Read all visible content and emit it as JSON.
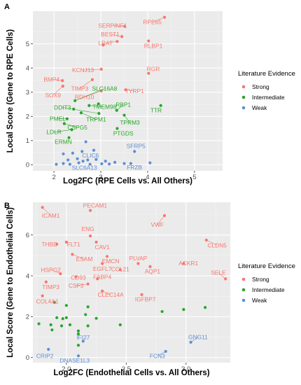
{
  "chart_data": [
    {
      "type": "scatter",
      "panel": "A",
      "xlabel": "Log2FC (RPE Cells vs. All Others)",
      "ylabel": "Local Score (Gene to RPE Cells)",
      "xlim": [
        1.55,
        5.6
      ],
      "ylim": [
        -0.25,
        6.35
      ],
      "xticks": [
        2,
        3,
        4,
        5
      ],
      "yticks": [
        0,
        1,
        2,
        3,
        4,
        5
      ],
      "grid": true,
      "legend": {
        "title": "Literature Evidence",
        "position": "right",
        "entries": [
          {
            "name": "Strong",
            "color": "#f8766d"
          },
          {
            "name": "Intermediate",
            "color": "#2aa52a"
          },
          {
            "name": "Weak",
            "color": "#5c8fd6"
          }
        ]
      },
      "points": [
        {
          "x": 4.36,
          "y": 6.1,
          "g": "Strong",
          "label": "RPE65",
          "lx": 4.1,
          "ly": 5.9
        },
        {
          "x": 3.51,
          "y": 5.72,
          "g": "Strong",
          "label": "SERPINF1",
          "lx": 3.25,
          "ly": 5.75
        },
        {
          "x": 3.45,
          "y": 5.3,
          "g": "Strong",
          "label": "BEST1",
          "lx": 3.2,
          "ly": 5.4
        },
        {
          "x": 3.35,
          "y": 5.1,
          "g": "Strong",
          "label": "LRAT",
          "lx": 3.1,
          "ly": 5.03
        },
        {
          "x": 3.05,
          "y": 4.95,
          "g": "Strong",
          "label": "",
          "lx": 0,
          "ly": 0
        },
        {
          "x": 4.02,
          "y": 5.12,
          "g": "Strong",
          "label": "RLBP1",
          "lx": 4.12,
          "ly": 4.92
        },
        {
          "x": 3.01,
          "y": 3.95,
          "g": "Strong",
          "label": "KCNJ13",
          "lx": 2.62,
          "ly": 3.92
        },
        {
          "x": 4.02,
          "y": 3.78,
          "g": "Strong",
          "label": "RGR",
          "lx": 4.12,
          "ly": 3.96
        },
        {
          "x": 2.18,
          "y": 3.48,
          "g": "Strong",
          "label": "BMP4",
          "lx": 1.95,
          "ly": 3.53
        },
        {
          "x": 2.82,
          "y": 3.52,
          "g": "Strong",
          "label": "TIMP3",
          "lx": 2.55,
          "ly": 3.15
        },
        {
          "x": 2.19,
          "y": 3.25,
          "g": "Strong",
          "label": "SOX9",
          "lx": 1.98,
          "ly": 2.88
        },
        {
          "x": 3.01,
          "y": 3.05,
          "g": "Strong",
          "label": "RDH10",
          "lx": 2.65,
          "ly": 2.8
        },
        {
          "x": 3.53,
          "y": 3.1,
          "g": "Strong",
          "label": "TYRP1",
          "lx": 3.72,
          "ly": 3.05
        },
        {
          "x": 2.45,
          "y": 2.65,
          "g": "Intermediate",
          "label": "SLC16A8",
          "lx": 3.08,
          "ly": 3.15
        },
        {
          "x": 2.95,
          "y": 2.52,
          "g": "Intermediate",
          "label": "",
          "lx": 0,
          "ly": 0
        },
        {
          "x": 2.96,
          "y": 2.12,
          "g": "Intermediate",
          "label": "DDIT3",
          "lx": 2.18,
          "ly": 2.37
        },
        {
          "x": 2.42,
          "y": 2.3,
          "g": "Intermediate",
          "label": "",
          "lx": 0,
          "ly": 0
        },
        {
          "x": 2.75,
          "y": 2.45,
          "g": "Intermediate",
          "label": "TMEM98",
          "lx": 3.08,
          "ly": 2.4
        },
        {
          "x": 3.34,
          "y": 2.25,
          "g": "Intermediate",
          "label": "RBP1",
          "lx": 3.48,
          "ly": 2.48
        },
        {
          "x": 3.5,
          "y": 2.05,
          "g": "Intermediate",
          "label": "TPRM3",
          "lx": 3.62,
          "ly": 1.75
        },
        {
          "x": 4.28,
          "y": 2.45,
          "g": "Intermediate",
          "label": "TTR",
          "lx": 4.18,
          "ly": 2.25
        },
        {
          "x": 2.28,
          "y": 1.9,
          "g": "Intermediate",
          "label": "PMEL",
          "lx": 2.08,
          "ly": 1.9
        },
        {
          "x": 2.58,
          "y": 2.15,
          "g": "Intermediate",
          "label": "TRPM1",
          "lx": 2.9,
          "ly": 1.88
        },
        {
          "x": 2.22,
          "y": 1.7,
          "g": "Intermediate",
          "label": "CSPG5",
          "lx": 2.5,
          "ly": 1.55
        },
        {
          "x": 2.38,
          "y": 1.45,
          "g": "Intermediate",
          "label": "LDLR",
          "lx": 2.0,
          "ly": 1.35
        },
        {
          "x": 3.35,
          "y": 1.5,
          "g": "Intermediate",
          "label": "PTGDS",
          "lx": 3.48,
          "ly": 1.3
        },
        {
          "x": 2.32,
          "y": 1.12,
          "g": "Intermediate",
          "label": "ERMN",
          "lx": 2.2,
          "ly": 0.95
        },
        {
          "x": 2.6,
          "y": 0.55,
          "g": "Weak",
          "label": "",
          "lx": 0,
          "ly": 0
        },
        {
          "x": 2.68,
          "y": 0.95,
          "g": "Weak",
          "label": "",
          "lx": 0,
          "ly": 0
        },
        {
          "x": 2.85,
          "y": 0.6,
          "g": "Weak",
          "label": "CLIC6",
          "lx": 2.78,
          "ly": 0.38
        },
        {
          "x": 2.4,
          "y": 0.48,
          "g": "Weak",
          "label": "",
          "lx": 0,
          "ly": 0
        },
        {
          "x": 2.2,
          "y": 0.45,
          "g": "Weak",
          "label": "",
          "lx": 0,
          "ly": 0
        },
        {
          "x": 2.3,
          "y": 0.2,
          "g": "Weak",
          "label": "",
          "lx": 0,
          "ly": 0
        },
        {
          "x": 2.5,
          "y": 0.25,
          "g": "Weak",
          "label": "",
          "lx": 0,
          "ly": 0
        },
        {
          "x": 2.62,
          "y": 0.15,
          "g": "Weak",
          "label": "",
          "lx": 0,
          "ly": 0
        },
        {
          "x": 2.72,
          "y": 0.2,
          "g": "Weak",
          "label": "",
          "lx": 0,
          "ly": 0
        },
        {
          "x": 2.9,
          "y": 0.22,
          "g": "Weak",
          "label": "",
          "lx": 0,
          "ly": 0
        },
        {
          "x": 3.1,
          "y": 0.15,
          "g": "Weak",
          "label": "",
          "lx": 0,
          "ly": 0
        },
        {
          "x": 3.3,
          "y": 0.1,
          "g": "Weak",
          "label": "",
          "lx": 0,
          "ly": 0
        },
        {
          "x": 3.5,
          "y": 0.05,
          "g": "Weak",
          "label": "",
          "lx": 0,
          "ly": 0
        },
        {
          "x": 3.72,
          "y": 0.55,
          "g": "Weak",
          "label": "SFRP5",
          "lx": 3.75,
          "ly": 0.78
        },
        {
          "x": 3.64,
          "y": 0.05,
          "g": "Weak",
          "label": "FRZB",
          "lx": 3.72,
          "ly": -0.1
        },
        {
          "x": 2.2,
          "y": 0.05,
          "g": "Weak",
          "label": "",
          "lx": 0,
          "ly": 0
        },
        {
          "x": 2.34,
          "y": 0.02,
          "g": "Weak",
          "label": "",
          "lx": 0,
          "ly": 0
        },
        {
          "x": 2.53,
          "y": 0.08,
          "g": "Weak",
          "label": "",
          "lx": 0,
          "ly": 0
        },
        {
          "x": 2.77,
          "y": 0.02,
          "g": "Weak",
          "label": "SLC6A13",
          "lx": 2.65,
          "ly": -0.12
        },
        {
          "x": 3.02,
          "y": 0.04,
          "g": "Weak",
          "label": "",
          "lx": 0,
          "ly": 0
        },
        {
          "x": 3.18,
          "y": 0.03,
          "g": "Weak",
          "label": "",
          "lx": 0,
          "ly": 0
        },
        {
          "x": 2.05,
          "y": 0.02,
          "g": "Weak",
          "label": "",
          "lx": 0,
          "ly": 0
        },
        {
          "x": 4.05,
          "y": 0.08,
          "g": "Weak",
          "label": "",
          "lx": 0,
          "ly": 0
        }
      ]
    },
    {
      "type": "scatter",
      "panel": "B",
      "xlabel": "Log2FC (Endothelial Cells vs. All Others)",
      "ylabel": "Local Score (Gene to Endothelial Cells)",
      "xlim": [
        1.72,
        3.37
      ],
      "ylim": [
        -0.25,
        7.6
      ],
      "xticks": [
        2.0,
        2.5,
        3.0
      ],
      "yticks": [
        0,
        2,
        4,
        6
      ],
      "grid": true,
      "legend": {
        "title": "Literature Evidence",
        "position": "right",
        "entries": [
          {
            "name": "Strong",
            "color": "#f8766d"
          },
          {
            "name": "Intermediate",
            "color": "#2aa52a"
          },
          {
            "name": "Weak",
            "color": "#5c8fd6"
          }
        ]
      },
      "points": [
        {
          "x": 1.8,
          "y": 7.35,
          "g": "Strong",
          "label": "ICAM1",
          "lx": 1.87,
          "ly": 6.95
        },
        {
          "x": 2.2,
          "y": 7.2,
          "g": "Strong",
          "label": "PECAM1",
          "lx": 2.24,
          "ly": 7.45
        },
        {
          "x": 2.82,
          "y": 6.95,
          "g": "Strong",
          "label": "VWF",
          "lx": 2.76,
          "ly": 6.5
        },
        {
          "x": 2.2,
          "y": 5.95,
          "g": "Strong",
          "label": "ENG",
          "lx": 2.18,
          "ly": 6.3
        },
        {
          "x": 2.25,
          "y": 5.65,
          "g": "Strong",
          "label": "CAV1",
          "lx": 2.3,
          "ly": 5.4
        },
        {
          "x": 2.0,
          "y": 5.65,
          "g": "Strong",
          "label": "FLT1",
          "lx": 2.06,
          "ly": 5.55
        },
        {
          "x": 1.92,
          "y": 5.55,
          "g": "Strong",
          "label": "THBD",
          "lx": 1.86,
          "ly": 5.55
        },
        {
          "x": 3.17,
          "y": 5.75,
          "g": "Strong",
          "label": "CLDN5",
          "lx": 3.26,
          "ly": 5.5
        },
        {
          "x": 2.05,
          "y": 5.05,
          "g": "Strong",
          "label": "ESAM",
          "lx": 2.15,
          "ly": 4.82
        },
        {
          "x": 2.34,
          "y": 4.95,
          "g": "Strong",
          "label": "EMCN",
          "lx": 2.37,
          "ly": 4.72
        },
        {
          "x": 2.3,
          "y": 4.6,
          "g": "Strong",
          "label": "EGFL7",
          "lx": 2.3,
          "ly": 4.35
        },
        {
          "x": 2.6,
          "y": 4.6,
          "g": "Strong",
          "label": "PLVAP",
          "lx": 2.6,
          "ly": 4.85
        },
        {
          "x": 2.7,
          "y": 4.45,
          "g": "Strong",
          "label": "AQP1",
          "lx": 2.72,
          "ly": 4.22
        },
        {
          "x": 2.98,
          "y": 4.6,
          "g": "Strong",
          "label": "ACKR1",
          "lx": 3.02,
          "ly": 4.62
        },
        {
          "x": 2.45,
          "y": 4.3,
          "g": "Strong",
          "label": "CCL21",
          "lx": 2.45,
          "ly": 4.32
        },
        {
          "x": 1.95,
          "y": 4.1,
          "g": "Strong",
          "label": "HSPG2",
          "lx": 1.87,
          "ly": 4.3
        },
        {
          "x": 2.08,
          "y": 3.95,
          "g": "Strong",
          "label": "CD93",
          "lx": 2.1,
          "ly": 3.92
        },
        {
          "x": 2.26,
          "y": 3.85,
          "g": "Strong",
          "label": "FABP4",
          "lx": 2.3,
          "ly": 3.95
        },
        {
          "x": 2.18,
          "y": 3.6,
          "g": "Strong",
          "label": "CSF3",
          "lx": 2.08,
          "ly": 3.52
        },
        {
          "x": 3.33,
          "y": 3.85,
          "g": "Strong",
          "label": "SELE",
          "lx": 3.27,
          "ly": 4.15
        },
        {
          "x": 1.83,
          "y": 3.7,
          "g": "Strong",
          "label": "TIMP3",
          "lx": 1.87,
          "ly": 3.45
        },
        {
          "x": 2.3,
          "y": 3.25,
          "g": "Strong",
          "label": "CLEC14A",
          "lx": 2.37,
          "ly": 3.08
        },
        {
          "x": 2.63,
          "y": 3.08,
          "g": "Strong",
          "label": "IGFBP7",
          "lx": 2.66,
          "ly": 2.85
        },
        {
          "x": 1.8,
          "y": 3.02,
          "g": "Strong",
          "label": "COL4A1",
          "lx": 1.84,
          "ly": 2.75
        },
        {
          "x": 1.9,
          "y": 2.7,
          "g": "Intermediate",
          "label": "",
          "lx": 0,
          "ly": 0
        },
        {
          "x": 2.0,
          "y": 2.55,
          "g": "Intermediate",
          "label": "",
          "lx": 0,
          "ly": 0
        },
        {
          "x": 2.18,
          "y": 2.48,
          "g": "Intermediate",
          "label": "",
          "lx": 0,
          "ly": 0
        },
        {
          "x": 2.16,
          "y": 2.1,
          "g": "Intermediate",
          "label": "",
          "lx": 0,
          "ly": 0
        },
        {
          "x": 2.25,
          "y": 1.92,
          "g": "Intermediate",
          "label": "",
          "lx": 0,
          "ly": 0
        },
        {
          "x": 1.92,
          "y": 1.95,
          "g": "Intermediate",
          "label": "",
          "lx": 0,
          "ly": 0
        },
        {
          "x": 1.97,
          "y": 1.9,
          "g": "Intermediate",
          "label": "",
          "lx": 0,
          "ly": 0
        },
        {
          "x": 2.0,
          "y": 1.95,
          "g": "Intermediate",
          "label": "",
          "lx": 0,
          "ly": 0
        },
        {
          "x": 1.87,
          "y": 1.6,
          "g": "Intermediate",
          "label": "",
          "lx": 0,
          "ly": 0
        },
        {
          "x": 1.96,
          "y": 1.55,
          "g": "Intermediate",
          "label": "",
          "lx": 0,
          "ly": 0
        },
        {
          "x": 2.03,
          "y": 1.6,
          "g": "Intermediate",
          "label": "",
          "lx": 0,
          "ly": 0
        },
        {
          "x": 1.77,
          "y": 1.65,
          "g": "Intermediate",
          "label": "",
          "lx": 0,
          "ly": 0
        },
        {
          "x": 1.88,
          "y": 1.35,
          "g": "Intermediate",
          "label": "",
          "lx": 0,
          "ly": 0
        },
        {
          "x": 2.1,
          "y": 1.3,
          "g": "Intermediate",
          "label": "",
          "lx": 0,
          "ly": 0
        },
        {
          "x": 2.18,
          "y": 1.55,
          "g": "Intermediate",
          "label": "",
          "lx": 0,
          "ly": 0
        },
        {
          "x": 2.45,
          "y": 1.6,
          "g": "Intermediate",
          "label": "",
          "lx": 0,
          "ly": 0
        },
        {
          "x": 2.8,
          "y": 2.25,
          "g": "Intermediate",
          "label": "",
          "lx": 0,
          "ly": 0
        },
        {
          "x": 2.98,
          "y": 2.35,
          "g": "Intermediate",
          "label": "",
          "lx": 0,
          "ly": 0
        },
        {
          "x": 3.16,
          "y": 2.45,
          "g": "Intermediate",
          "label": "",
          "lx": 0,
          "ly": 0
        },
        {
          "x": 2.1,
          "y": 1.15,
          "g": "Intermediate",
          "label": "",
          "lx": 0,
          "ly": 0
        },
        {
          "x": 2.1,
          "y": 0.6,
          "g": "Intermediate",
          "label": "",
          "lx": 0,
          "ly": 0
        },
        {
          "x": 2.14,
          "y": 0.8,
          "g": "Weak",
          "label": "IFI27",
          "lx": 2.14,
          "ly": 0.98
        },
        {
          "x": 1.85,
          "y": 0.4,
          "g": "Weak",
          "label": "CRIP2",
          "lx": 1.82,
          "ly": 0.08
        },
        {
          "x": 2.1,
          "y": 0.08,
          "g": "Weak",
          "label": "DNASE1L3",
          "lx": 2.07,
          "ly": -0.15
        },
        {
          "x": 2.83,
          "y": 0.3,
          "g": "Weak",
          "label": "FCN3",
          "lx": 2.76,
          "ly": 0.08
        },
        {
          "x": 3.04,
          "y": 0.75,
          "g": "Weak",
          "label": "GNG11",
          "lx": 3.1,
          "ly": 1.0
        }
      ]
    }
  ]
}
